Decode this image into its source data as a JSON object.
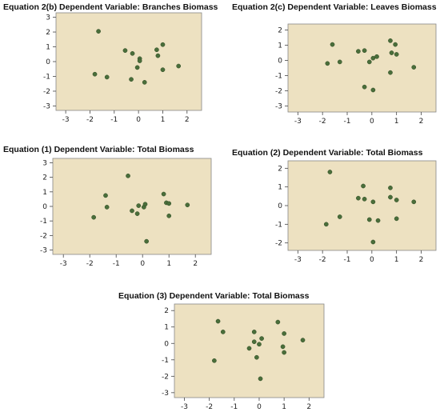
{
  "chart_data": [
    {
      "type": "scatter",
      "title": "Equation 2(b) Dependent Variable: Branches Biomass",
      "x": [
        -1.65,
        -1.8,
        -1.3,
        -0.55,
        -0.25,
        -0.3,
        -0.05,
        0.05,
        0.05,
        0.25,
        0.75,
        0.8,
        1.0,
        1.0,
        1.65
      ],
      "y": [
        2.05,
        -0.85,
        -1.05,
        0.75,
        0.55,
        -1.2,
        -0.4,
        0.2,
        0.05,
        -1.4,
        0.8,
        0.4,
        1.15,
        -0.55,
        -0.3
      ],
      "xlim": [
        -3.4,
        2.6
      ],
      "ylim": [
        -3.3,
        3.3
      ],
      "xticks": [
        "-3",
        "-2",
        "-1",
        "0",
        "1",
        "2"
      ],
      "yticks": [
        "3",
        "2",
        "1",
        "0",
        "-1",
        "-2",
        "-3"
      ],
      "background": "#ede1c1",
      "marker_color": "#4a6e3a"
    },
    {
      "type": "scatter",
      "title": "Equation 2(c) Dependent Variable: Leaves Biomass",
      "x": [
        -1.6,
        -1.8,
        -1.3,
        -0.55,
        -0.3,
        -0.3,
        -0.1,
        0.05,
        0.2,
        0.05,
        0.75,
        0.95,
        0.8,
        1.0,
        0.75,
        1.7
      ],
      "y": [
        1.05,
        -0.2,
        -0.1,
        0.6,
        0.65,
        -1.75,
        -0.1,
        0.15,
        0.25,
        -1.95,
        1.3,
        1.05,
        0.5,
        0.4,
        -0.8,
        -0.45
      ],
      "xlim": [
        -3.4,
        2.6
      ],
      "ylim": [
        -3.4,
        2.4
      ],
      "xticks": [
        "-3",
        "-2",
        "-1",
        "0",
        "1",
        "2"
      ],
      "yticks": [
        "2",
        "1",
        "0",
        "-1",
        "-2",
        "-3"
      ],
      "background": "#ede1c1",
      "marker_color": "#4a6e3a"
    },
    {
      "type": "scatter",
      "title": "Equation (1)  Dependent Variable: Total Biomass",
      "x": [
        -1.85,
        -1.4,
        -1.35,
        -0.55,
        -0.4,
        -0.2,
        -0.15,
        0.05,
        0.1,
        0.15,
        0.8,
        0.9,
        1.0,
        1.0,
        1.7
      ],
      "y": [
        -0.75,
        0.75,
        -0.05,
        2.1,
        -0.3,
        -0.5,
        0.05,
        -0.05,
        0.15,
        -2.4,
        0.85,
        0.25,
        0.2,
        -0.65,
        0.1
      ],
      "xlim": [
        -3.4,
        2.6
      ],
      "ylim": [
        -3.3,
        3.3
      ],
      "xticks": [
        "-3",
        "-2",
        "-1",
        "0",
        "1",
        "2"
      ],
      "yticks": [
        "3",
        "2",
        "1",
        "0",
        "-1",
        "-2",
        "-3"
      ],
      "background": "#ede1c1",
      "marker_color": "#4a6e3a"
    },
    {
      "type": "scatter",
      "title": "Equation (2)   Dependent Variable: Total Biomass",
      "x": [
        -1.7,
        -1.85,
        -1.3,
        -0.55,
        -0.35,
        -0.3,
        -0.1,
        0.05,
        0.25,
        0.05,
        0.75,
        0.75,
        1.0,
        1.0,
        1.7
      ],
      "y": [
        1.8,
        -1.0,
        -0.6,
        0.4,
        1.05,
        0.35,
        -0.75,
        0.2,
        -0.8,
        -1.95,
        0.95,
        0.45,
        0.3,
        -0.7,
        0.2
      ],
      "xlim": [
        -3.4,
        2.6
      ],
      "ylim": [
        -2.4,
        2.4
      ],
      "xticks": [
        "-3",
        "-2",
        "-1",
        "0",
        "1",
        "2"
      ],
      "yticks": [
        "2",
        "1",
        "0",
        "-1",
        "-2"
      ],
      "background": "#ede1c1",
      "marker_color": "#4a6e3a"
    },
    {
      "type": "scatter",
      "title": "Equation (3)   Dependent Variable: Total Biomass",
      "x": [
        -1.65,
        -1.45,
        -1.8,
        -0.4,
        -0.2,
        -0.2,
        -0.1,
        0.0,
        0.1,
        0.75,
        1.0,
        0.95,
        1.0,
        1.75,
        0.05
      ],
      "y": [
        1.35,
        0.7,
        -1.05,
        -0.3,
        0.7,
        0.1,
        -0.85,
        -0.05,
        0.3,
        1.3,
        0.6,
        -0.2,
        -0.55,
        0.2,
        -2.15
      ],
      "xlim": [
        -3.4,
        2.6
      ],
      "ylim": [
        -3.3,
        2.4
      ],
      "xticks": [
        "-3",
        "-2",
        "-1",
        "0",
        "1",
        "2"
      ],
      "yticks": [
        "2",
        "1",
        "0",
        "-1",
        "-2",
        "-3"
      ],
      "background": "#ede1c1",
      "marker_color": "#4a6e3a"
    }
  ]
}
